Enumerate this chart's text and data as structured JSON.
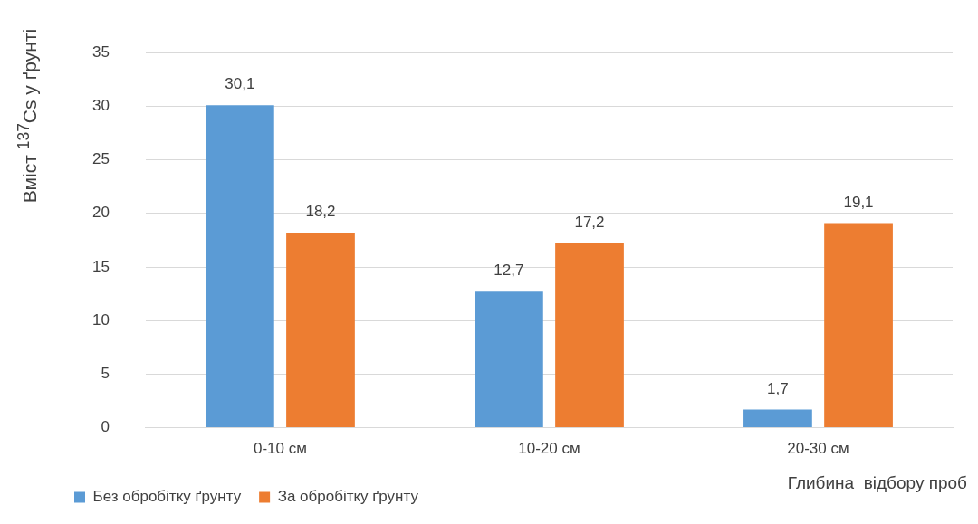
{
  "chart_data": {
    "type": "bar",
    "ylabel": "Вміст $^{137}$Cs у ґрунті",
    "xlabel": "Глибина  відбору проб",
    "categories": [
      "0-10 см",
      "10-20 см",
      "20-30 см"
    ],
    "series": [
      {
        "name": "Без обробітку ґрунту",
        "color": "#5b9bd5",
        "values": [
          30.1,
          12.7,
          1.7
        ],
        "value_labels": [
          "30,1",
          "12,7",
          "1,7"
        ]
      },
      {
        "name": "За обробітку ґрунту",
        "color": "#ed7d31",
        "values": [
          18.2,
          17.2,
          19.1
        ],
        "value_labels": [
          "18,2",
          "17,2",
          "19,1"
        ]
      }
    ],
    "ylim": [
      0,
      35
    ],
    "yticks": [
      0,
      5,
      10,
      15,
      20,
      25,
      30,
      35
    ],
    "grid": "y",
    "legend": "bottom"
  }
}
